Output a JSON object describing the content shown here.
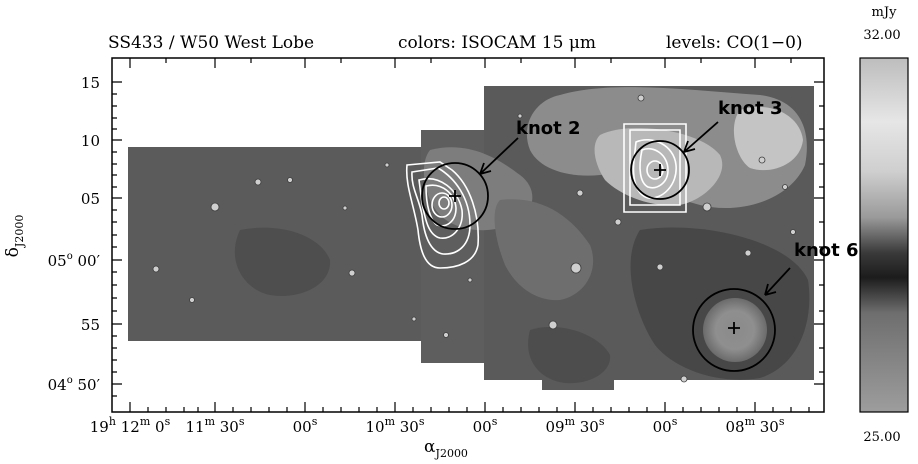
{
  "header": {
    "object": "SS433 / W50 West Lobe",
    "colors_label": "colors: ISOCAM 15 μm",
    "levels_label": "levels: CO(1−0)"
  },
  "colorbar": {
    "unit": "mJy",
    "max": "32.00",
    "min": "25.00"
  },
  "axes": {
    "y_label": "δ",
    "y_label_sub": "J2000",
    "x_label": "α",
    "x_label_sub": "J2000",
    "y_ticks": [
      {
        "text": "15"
      },
      {
        "text": "10"
      },
      {
        "text": "05"
      },
      {
        "deg": "05",
        "deg_sym": "o",
        "arcmin": " 00′"
      },
      {
        "text": "55"
      },
      {
        "deg": "04",
        "deg_sym": "o",
        "arcmin": " 50′"
      }
    ],
    "x_ticks": [
      {
        "parts": [
          [
            "19",
            ""
          ],
          [
            "h",
            "sup"
          ],
          [
            " 12",
            ""
          ],
          [
            "m",
            "sup"
          ],
          [
            " 0",
            ""
          ],
          [
            "s",
            "sup"
          ]
        ]
      },
      {
        "parts": [
          [
            "11",
            ""
          ],
          [
            "m",
            "sup"
          ],
          [
            " 30",
            ""
          ],
          [
            "s",
            "sup"
          ]
        ]
      },
      {
        "parts": [
          [
            "00",
            ""
          ],
          [
            "s",
            "sup"
          ]
        ]
      },
      {
        "parts": [
          [
            "10",
            ""
          ],
          [
            "m",
            "sup"
          ],
          [
            " 30",
            ""
          ],
          [
            "s",
            "sup"
          ]
        ]
      },
      {
        "parts": [
          [
            "00",
            ""
          ],
          [
            "s",
            "sup"
          ]
        ]
      },
      {
        "parts": [
          [
            "09",
            ""
          ],
          [
            "m",
            "sup"
          ],
          [
            " 30",
            ""
          ],
          [
            "s",
            "sup"
          ]
        ]
      },
      {
        "parts": [
          [
            "00",
            ""
          ],
          [
            "s",
            "sup"
          ]
        ]
      },
      {
        "parts": [
          [
            "08",
            ""
          ],
          [
            "m",
            "sup"
          ],
          [
            " 30",
            ""
          ],
          [
            "s",
            "sup"
          ]
        ]
      }
    ]
  },
  "knots": [
    {
      "id": "knot-2",
      "label": "knot 2"
    },
    {
      "id": "knot-3",
      "label": "knot 3"
    },
    {
      "id": "knot-6",
      "label": "knot 6"
    }
  ],
  "colors": {
    "background_gray": "#5b5b5b",
    "frame": "#000000",
    "contour": "#ffffff"
  }
}
